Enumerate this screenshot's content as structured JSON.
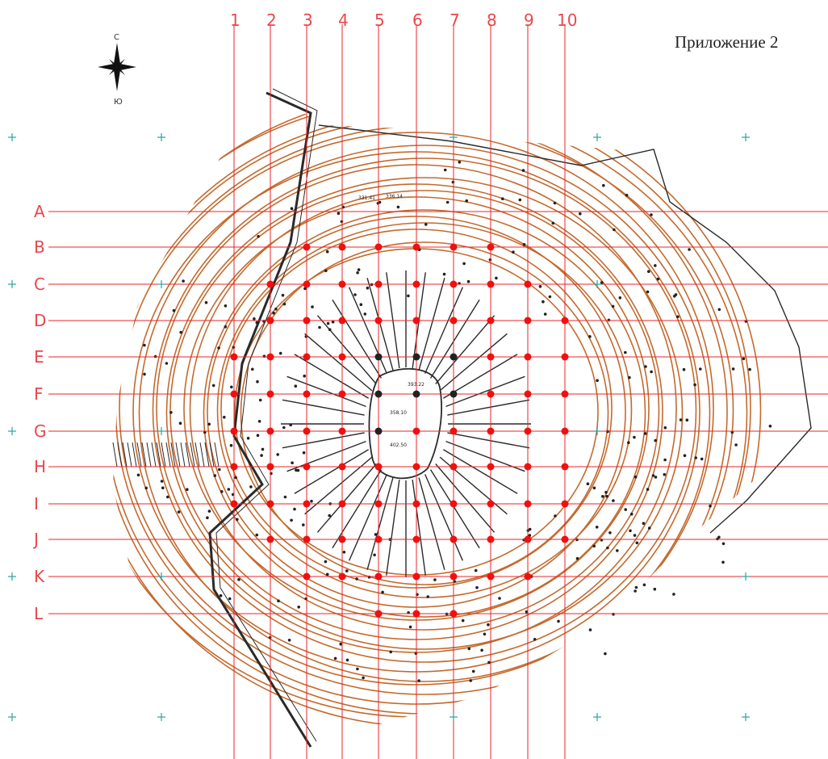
{
  "appendix_title": "Приложение 2",
  "compass": {
    "north_label": "С",
    "south_label": "Ю"
  },
  "grid": {
    "columns": [
      "1",
      "2",
      "3",
      "4",
      "5",
      "6",
      "7",
      "8",
      "9",
      "10"
    ],
    "rows": [
      "A",
      "B",
      "C",
      "D",
      "E",
      "F",
      "G",
      "H",
      "I",
      "J",
      "K",
      "L"
    ]
  },
  "spot_heights": [
    "393.22",
    "358.10",
    "402.50",
    "331.41",
    "336.14"
  ],
  "colors": {
    "grid_line": "#e8242a",
    "grid_label": "#e8484c",
    "contour": "#c46a2e",
    "sample_point": "#f01010",
    "sample_point_dark": "#222222",
    "structure": "#2a2a2a",
    "cross_marker": "#2aa39c"
  },
  "cross_marker_icon": "cross-marker-icon",
  "compass_icon": "compass-star-icon"
}
